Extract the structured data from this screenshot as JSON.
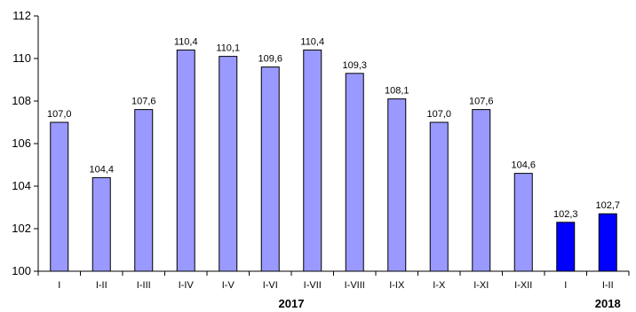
{
  "chart_data": {
    "type": "bar",
    "title": "",
    "xlabel": "",
    "ylabel": "",
    "ylim": [
      100,
      112
    ],
    "yticks": [
      100,
      102,
      104,
      106,
      108,
      110,
      112
    ],
    "grid": false,
    "categories": [
      "I",
      "I-II",
      "I-III",
      "I-IV",
      "I-V",
      "I-VI",
      "I-VII",
      "I-VIII",
      "I-IX",
      "I-X",
      "I-XI",
      "I-XII",
      "I",
      "I-II"
    ],
    "values": [
      107.0,
      104.4,
      107.6,
      110.4,
      110.1,
      109.6,
      110.4,
      109.3,
      108.1,
      107.0,
      107.6,
      104.6,
      102.3,
      102.7
    ],
    "data_labels": [
      "107,0",
      "104,4",
      "107,6",
      "110,4",
      "110,1",
      "109,6",
      "110,4",
      "109,3",
      "108,1",
      "107,0",
      "107,6",
      "104,6",
      "102,3",
      "102,7"
    ],
    "groups": [
      {
        "label": "2017",
        "categories_count": 12,
        "color": "#9999ff"
      },
      {
        "label": "2018",
        "categories_count": 2,
        "color": "#0000ff"
      }
    ]
  }
}
